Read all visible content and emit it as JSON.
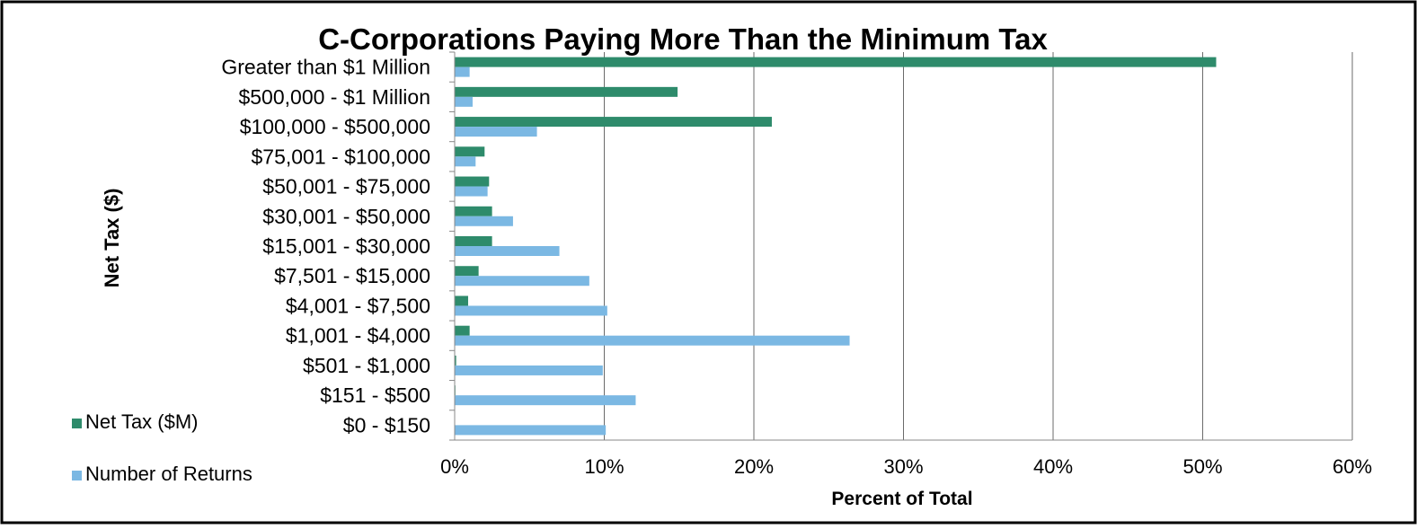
{
  "chart_data": {
    "type": "bar",
    "orientation": "horizontal",
    "title": "C-Corporations Paying More Than the Minimum Tax",
    "xlabel": "Percent of Total",
    "ylabel": "Net Tax ($)",
    "xlim": [
      0,
      60
    ],
    "xticks": [
      0,
      10,
      20,
      30,
      40,
      50,
      60
    ],
    "xtick_labels": [
      "0%",
      "10%",
      "20%",
      "30%",
      "40%",
      "50%",
      "60%"
    ],
    "grid": "vertical",
    "legend_position": "left-bottom",
    "categories": [
      "Greater than $1 Million",
      "$500,000 - $1 Million",
      "$100,000 - $500,000",
      "$75,001 - $100,000",
      "$50,001 - $75,000",
      "$30,001 - $50,000",
      "$15,001 - $30,000",
      "$7,501 - $15,000",
      "$4,001 - $7,500",
      "$1,001 - $4,000",
      "$501 - $1,000",
      "$151 - $500",
      "$0 - $150"
    ],
    "series": [
      {
        "name": "Net Tax ($M)",
        "color": "#2e8b6b",
        "values": [
          50.9,
          14.9,
          21.2,
          2.0,
          2.3,
          2.5,
          2.5,
          1.6,
          0.9,
          1.0,
          0.1,
          0.05,
          0.02
        ]
      },
      {
        "name": "Number of Returns",
        "color": "#7bb8e3",
        "values": [
          1.0,
          1.2,
          5.5,
          1.4,
          2.2,
          3.9,
          7.0,
          9.0,
          10.2,
          26.4,
          9.9,
          12.1,
          10.1
        ]
      }
    ]
  }
}
